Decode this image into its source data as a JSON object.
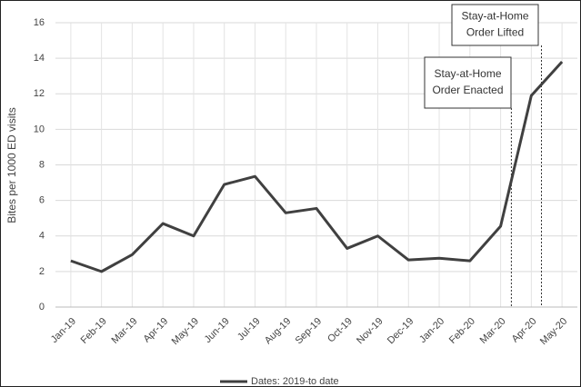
{
  "chart_data": {
    "type": "line",
    "y_label": "Bites per 1000  ED visits",
    "categories": [
      "Jan-19",
      "Feb-19",
      "Mar-19",
      "Apr-19",
      "May-19",
      "Jun-19",
      "Jul-19",
      "Aug-19",
      "Sep-19",
      "Oct-19",
      "Nov-19",
      "Dec-19",
      "Jan-20",
      "Feb-20",
      "Mar-20",
      "Apr-20",
      "May-20"
    ],
    "series": [
      {
        "name": "Dates: 2019-to date",
        "color": "#404040",
        "values": [
          2.6,
          2.0,
          2.95,
          4.7,
          4.0,
          6.9,
          7.35,
          5.3,
          5.55,
          3.3,
          4.0,
          2.65,
          2.75,
          2.6,
          4.55,
          11.9,
          13.8
        ]
      }
    ],
    "ylim": [
      0,
      16
    ],
    "yticks": [
      0,
      2,
      4,
      6,
      8,
      10,
      12,
      14,
      16
    ],
    "grid": true,
    "legend": "bottom",
    "annotations": [
      {
        "lines": [
          "Stay-at-Home",
          "Order Enacted"
        ]
      },
      {
        "lines": [
          "Stay-at-Home",
          "Order Lifted"
        ]
      }
    ]
  }
}
